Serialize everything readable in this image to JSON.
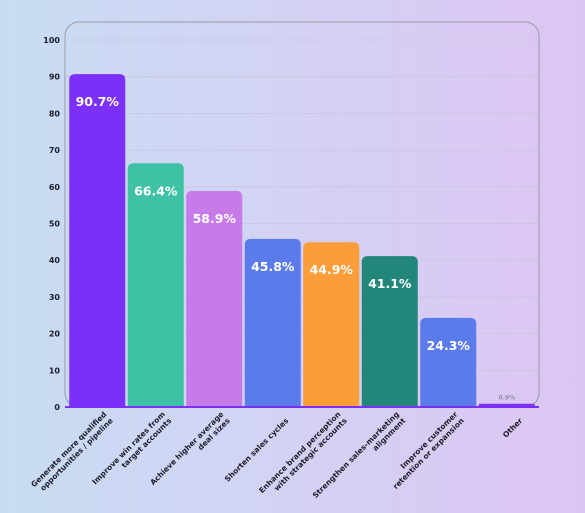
{
  "chart_data": {
    "type": "bar",
    "title": "",
    "xlabel": "",
    "ylabel": "",
    "ylim": [
      0,
      100
    ],
    "yticks": [
      0,
      10,
      20,
      30,
      40,
      50,
      60,
      70,
      80,
      90,
      100
    ],
    "grid": true,
    "legend": "none",
    "categories": [
      [
        "Generate more qualified",
        "opportunities / pipeline"
      ],
      [
        "Improve win rates from",
        "target accounts"
      ],
      [
        "Achieve higher average",
        "deal sizes"
      ],
      [
        "Shorten sales cycles"
      ],
      [
        "Enhance brand perception",
        "with strategic accounts"
      ],
      [
        "Strengthen sales-marketing",
        "alignment"
      ],
      [
        "Improve customer",
        "retention or expansion"
      ],
      [
        "Other"
      ]
    ],
    "values": [
      90.7,
      66.4,
      58.9,
      45.8,
      44.9,
      41.1,
      24.3,
      0.9
    ],
    "value_labels": [
      "90.7%",
      "66.4%",
      "58.9%",
      "45.8%",
      "44.9%",
      "41.1%",
      "24.3%",
      "0.9%"
    ],
    "colors": [
      "#7b2ff7",
      "#3fc1a5",
      "#c77be8",
      "#5b7bea",
      "#fb9e3a",
      "#22877a",
      "#5b7bea",
      "#7b2ff7"
    ]
  }
}
